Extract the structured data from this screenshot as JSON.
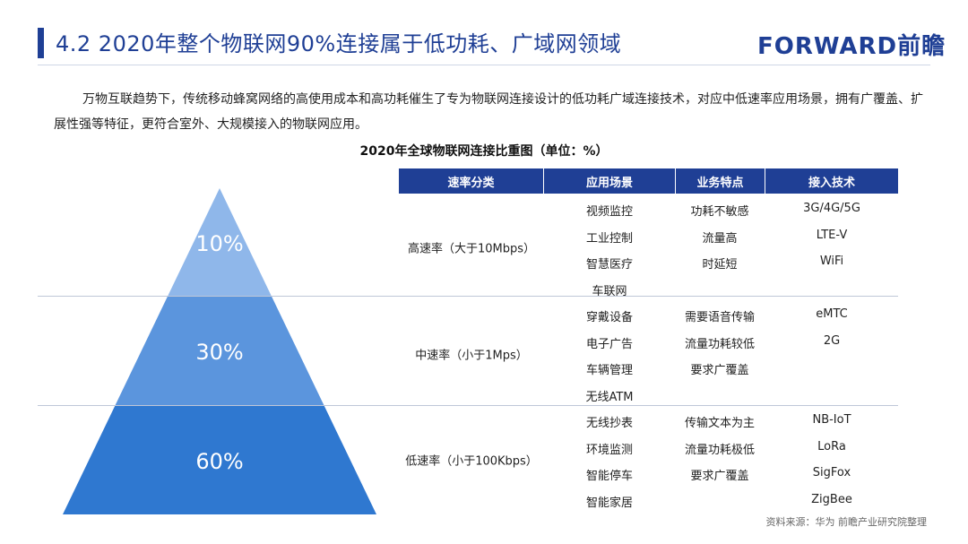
{
  "header": {
    "title": "4.2 2020年整个物联网90%连接属于低功耗、广域网领域",
    "brand": "FORWARD前瞻"
  },
  "intro": "万物互联趋势下，传统移动蜂窝网络的高使用成本和高功耗催生了专为物联网连接设计的低功耗广域连接技术，对应中低速率应用场景，拥有广覆盖、扩展性强等特征，更符合室外、大规模接入的物联网应用。",
  "colors": {
    "primary": "#1f3f95",
    "pyramid_top": "#8fb7ea",
    "pyramid_mid": "#5b95dd",
    "pyramid_bottom": "#2f78d0"
  },
  "chart_data": {
    "type": "table",
    "title": "2020年全球物联网连接比重图（单位：%）",
    "columns": [
      "速率分类",
      "应用场景",
      "业务特点",
      "接入技术"
    ],
    "pyramid": [
      {
        "label": "10%",
        "value": 10
      },
      {
        "label": "30%",
        "value": 30
      },
      {
        "label": "60%",
        "value": 60
      }
    ],
    "rows": [
      {
        "rate": "高速率（大于10Mbps）",
        "scenarios": [
          "视频监控",
          "工业控制",
          "智慧医疗",
          "车联网"
        ],
        "features": [
          "功耗不敏感",
          "流量高",
          "时延短"
        ],
        "tech": [
          "3G/4G/5G",
          "LTE-V",
          "WiFi"
        ]
      },
      {
        "rate": "中速率（小于1Mps）",
        "scenarios": [
          "穿戴设备",
          "电子广告",
          "车辆管理",
          "无线ATM"
        ],
        "features": [
          "需要语音传输",
          "流量功耗较低",
          "要求广覆盖"
        ],
        "tech": [
          "eMTC",
          "2G"
        ]
      },
      {
        "rate": "低速率（小于100Kbps）",
        "scenarios": [
          "无线抄表",
          "环境监测",
          "智能停车",
          "智能家居"
        ],
        "features": [
          "传输文本为主",
          "流量功耗极低",
          "要求广覆盖"
        ],
        "tech": [
          "NB-IoT",
          "LoRa",
          "SigFox",
          "ZigBee"
        ]
      }
    ]
  },
  "source": "资料来源：华为  前瞻产业研究院整理"
}
